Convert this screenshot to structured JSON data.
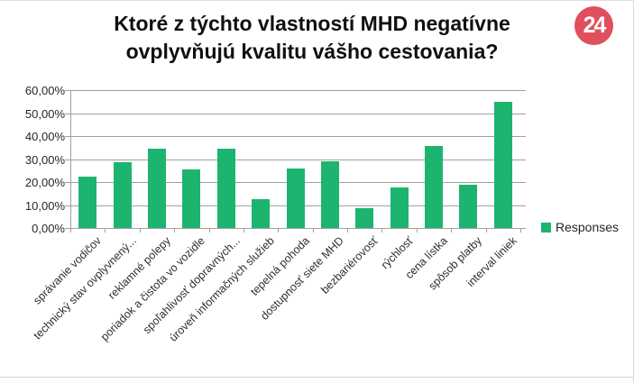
{
  "header": {
    "title_lines": [
      "Ktoré z týchto vlastností MHD negatívne",
      "ovplyvňujú kvalitu vášho cestovania?"
    ]
  },
  "logo": {
    "text": "24",
    "bg_color": "#e04f5e"
  },
  "legend": {
    "label": "Responses",
    "swatch_color": "#1db470"
  },
  "chart_data": {
    "type": "bar",
    "title": "Ktoré z týchto vlastností MHD negatívne ovplyvňujú kvalitu vášho cestovania?",
    "categories": [
      "správanie vodičov",
      "technický stav ovplyvnený...",
      "reklamné polepy",
      "poriadok a čistota vo vozidle",
      "spoľahlivosť dopravných...",
      "úroveň informačných služieb",
      "tepelná pohoda",
      "dostupnosť siete MHD",
      "bezbariérovosť",
      "rýchlosť",
      "cena lístka",
      "spôsob platby",
      "interval liniek"
    ],
    "series": [
      {
        "name": "Responses",
        "values": [
          22.5,
          28.5,
          34.5,
          25.5,
          34.5,
          12.5,
          26,
          29,
          8.5,
          17.5,
          35.5,
          19,
          55
        ]
      }
    ],
    "xlabel": "",
    "ylabel": "",
    "ylim": [
      0,
      60
    ],
    "ytick_step": 10,
    "ytick_labels": [
      "0,00%",
      "10,00%",
      "20,00%",
      "30,00%",
      "40,00%",
      "50,00%",
      "60,00%"
    ],
    "grid": true,
    "legend_position": "bottom-right",
    "bar_color": "#1db470",
    "gridline_color": "#a0a0a0"
  }
}
